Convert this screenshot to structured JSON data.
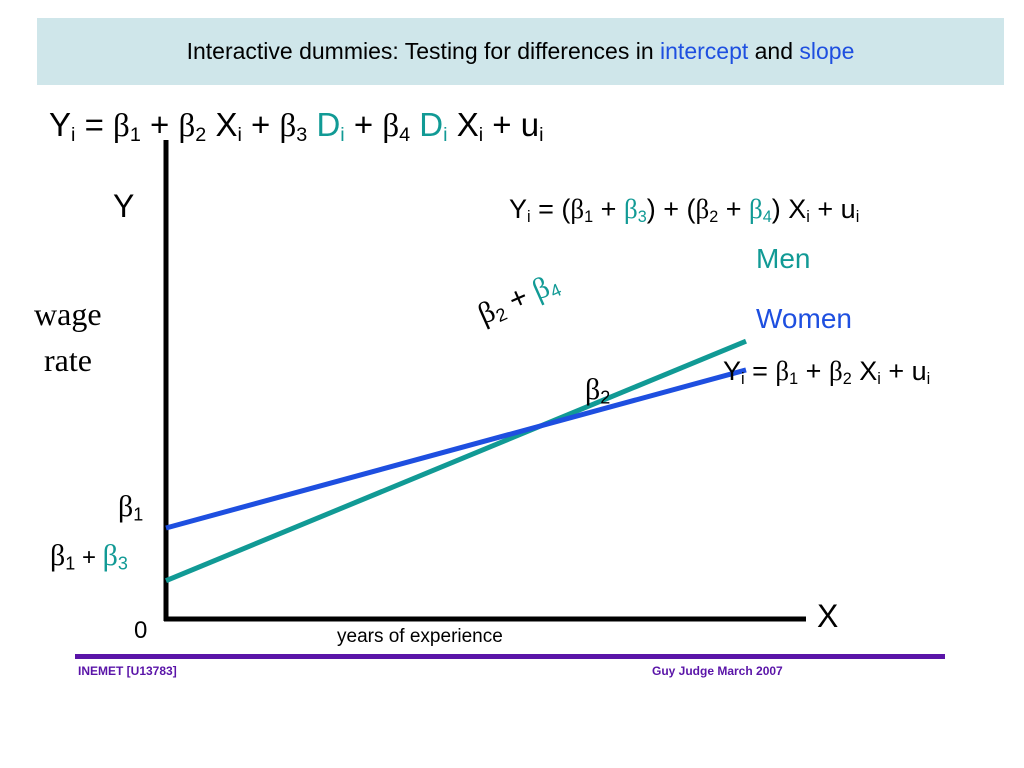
{
  "title": {
    "prefix": "Interactive dummies: Testing for differences in ",
    "word1": "intercept",
    "mid": " and ",
    "word2": "slope"
  },
  "main_equation": {
    "Y": "Y",
    "i": "i",
    "eq": " = ",
    "b": "β",
    "one": "1",
    "two": "2",
    "three": "3",
    "four": "4",
    "plus": " + ",
    "X": "X",
    "D": "D",
    "u": "u"
  },
  "men_equation": {
    "lhs": "Y",
    "i": "i",
    "open": " = (",
    "b": "β",
    "one": "1",
    "three": "3",
    "two": "2",
    "four": "4",
    "plus": " + ",
    "close1": ") + (",
    "close2": ") X",
    "tail": " + u"
  },
  "women_equation": {
    "lhs": "Y",
    "i": "i",
    "eq": " = ",
    "b": "β",
    "one": "1",
    "two": "2",
    "plus": " + ",
    "X": " X",
    "tail": " + u"
  },
  "axis": {
    "y_letter": "Y",
    "y_word1": "wage",
    "y_word2": "rate",
    "x_letter": "X",
    "x_label": "years  of  experience",
    "origin": "0"
  },
  "labels": {
    "men": "Men",
    "women": "Women",
    "slope_men_b": "β",
    "slope_men_2": "2",
    "slope_men_plus": " + ",
    "slope_men_b4": "β",
    "slope_men_4": "4",
    "slope_women_b": "β",
    "slope_women_2": "2",
    "int_women_b": "β",
    "int_women_1": "1",
    "int_men_b": "β",
    "int_men_1": "1",
    "int_men_plus": " + ",
    "int_men_b3": "β",
    "int_men_3": "3"
  },
  "colors": {
    "men_line": "#119a95",
    "women_line": "#1e4fe0",
    "axis": "#000000",
    "footer": "#5a14a8"
  },
  "chart_data": {
    "type": "line",
    "series": [
      {
        "name": "Men",
        "slope_label": "β2 + β4",
        "intercept_label": "β1 + β3",
        "points": [
          [
            0,
            0.08
          ],
          [
            1,
            0.58
          ]
        ]
      },
      {
        "name": "Women",
        "slope_label": "β2",
        "intercept_label": "β1",
        "points": [
          [
            0,
            0.19
          ],
          [
            1,
            0.52
          ]
        ]
      }
    ],
    "xlabel": "years  of  experience",
    "ylabel": "wage rate",
    "origin_label": "0"
  },
  "footer": {
    "left": "INEMET [U13783]",
    "right": "Guy Judge   March 2007"
  }
}
